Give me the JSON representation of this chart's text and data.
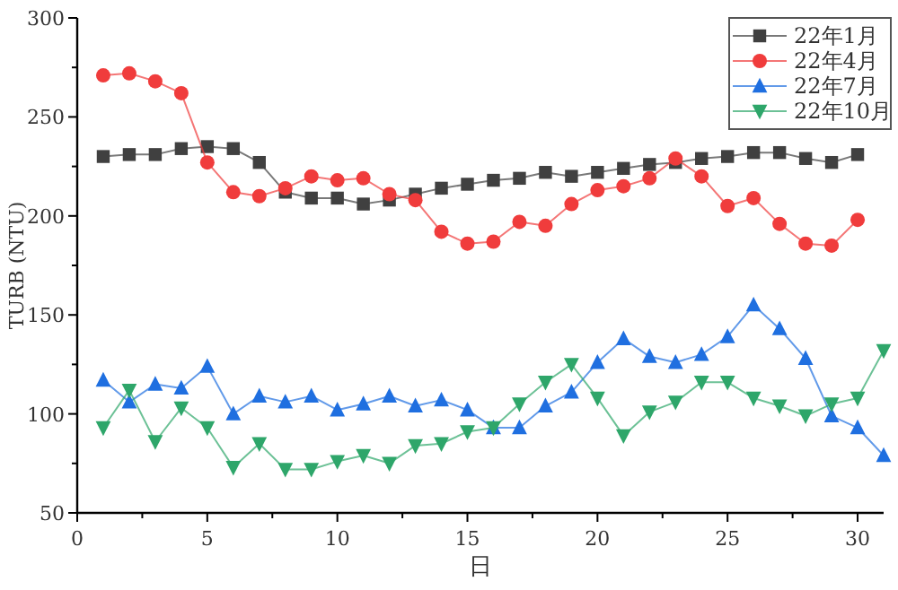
{
  "chart_data": {
    "type": "line",
    "xlabel": "日",
    "ylabel": "TURB (NTU)",
    "xlim": [
      0,
      31
    ],
    "ylim": [
      50,
      300
    ],
    "xticks": [
      0,
      {
        "value": 2.5,
        "label": null
      },
      5,
      {
        "value": 7.5,
        "label": null
      },
      10,
      {
        "value": 12.5,
        "label": null
      },
      15,
      {
        "value": 17.5,
        "label": null
      },
      20,
      {
        "value": 22.5,
        "label": null
      },
      25,
      {
        "value": 27.5,
        "label": null
      },
      30
    ],
    "yticks": [
      50,
      {
        "value": 75,
        "label": null
      },
      100,
      {
        "value": 125,
        "label": null
      },
      150,
      {
        "value": 175,
        "label": null
      },
      200,
      {
        "value": 225,
        "label": null
      },
      250,
      {
        "value": 275,
        "label": null
      },
      300
    ],
    "grid": false,
    "legend": "top right",
    "series": [
      {
        "name": "22年1月",
        "color": "#404040",
        "marker": "square",
        "x": [
          1,
          2,
          3,
          4,
          5,
          6,
          7,
          8,
          9,
          10,
          11,
          12,
          13,
          14,
          15,
          16,
          17,
          18,
          19,
          20,
          21,
          22,
          23,
          24,
          25,
          26,
          27,
          28,
          29,
          30
        ],
        "values": [
          230,
          231,
          231,
          234,
          235,
          234,
          227,
          212,
          209,
          209,
          206,
          208,
          211,
          214,
          216,
          218,
          219,
          222,
          220,
          222,
          224,
          226,
          227,
          229,
          230,
          232,
          232,
          229,
          227,
          231
        ]
      },
      {
        "name": "22年4月",
        "color": "#f03c3c",
        "marker": "circle",
        "x": [
          1,
          2,
          3,
          4,
          5,
          6,
          7,
          8,
          9,
          10,
          11,
          12,
          13,
          14,
          15,
          16,
          17,
          18,
          19,
          20,
          21,
          22,
          23,
          24,
          25,
          26,
          27,
          28,
          29,
          30
        ],
        "values": [
          271,
          272,
          268,
          262,
          227,
          212,
          210,
          214,
          220,
          218,
          219,
          211,
          208,
          192,
          186,
          187,
          197,
          195,
          206,
          213,
          215,
          219,
          229,
          220,
          205,
          209,
          196,
          186,
          185,
          198
        ]
      },
      {
        "name": "22年7月",
        "color": "#1f6fe0",
        "marker": "triangle",
        "x": [
          1,
          2,
          3,
          4,
          5,
          6,
          7,
          8,
          9,
          10,
          11,
          12,
          13,
          14,
          15,
          16,
          17,
          18,
          19,
          20,
          21,
          22,
          23,
          24,
          25,
          26,
          27,
          28,
          29,
          30,
          31
        ],
        "values": [
          117,
          106,
          115,
          113,
          124,
          100,
          109,
          106,
          109,
          102,
          105,
          109,
          104,
          107,
          102,
          93,
          93,
          104,
          111,
          126,
          138,
          129,
          126,
          130,
          139,
          155,
          143,
          128,
          99,
          93,
          79
        ]
      },
      {
        "name": "22年10月",
        "color": "#2ea66a",
        "marker": "triangle-down",
        "x": [
          1,
          2,
          3,
          4,
          5,
          6,
          7,
          8,
          9,
          10,
          11,
          12,
          13,
          14,
          15,
          16,
          17,
          18,
          19,
          20,
          21,
          22,
          23,
          24,
          25,
          26,
          27,
          28,
          29,
          30,
          31
        ],
        "values": [
          93,
          112,
          86,
          103,
          93,
          73,
          85,
          72,
          72,
          76,
          79,
          75,
          84,
          85,
          91,
          93,
          105,
          116,
          125,
          108,
          89,
          101,
          106,
          116,
          116,
          108,
          104,
          99,
          105,
          108,
          132
        ]
      }
    ]
  }
}
